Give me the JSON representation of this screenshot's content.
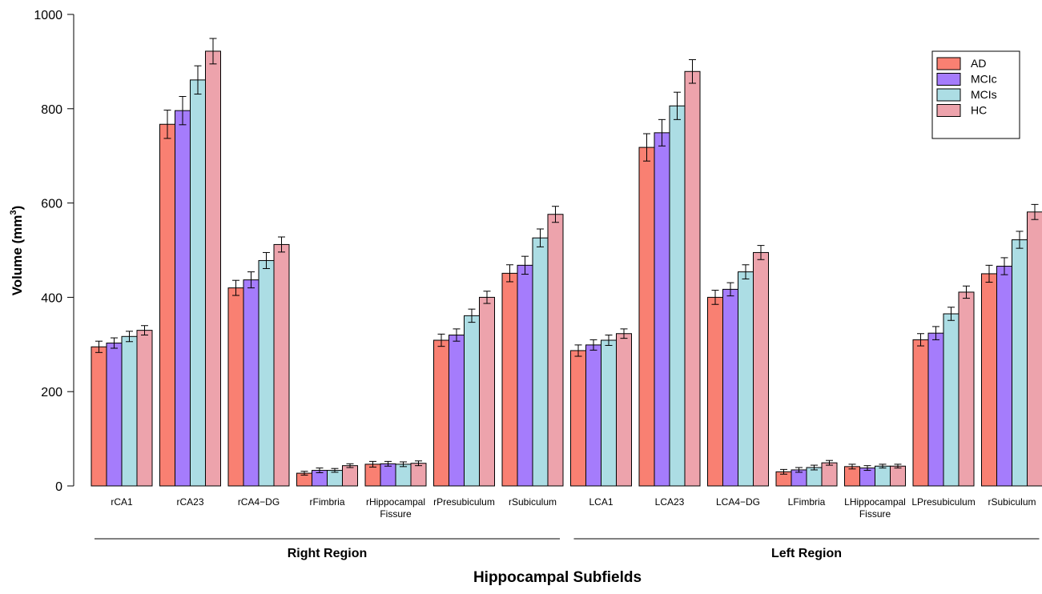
{
  "chart_data": {
    "type": "bar",
    "title": "",
    "xlabel": "Hippocampal Subfields",
    "ylabel": "Volume (mm",
    "ylabel_sup": "3",
    "ylabel_close": ")",
    "ylim": [
      0,
      1000
    ],
    "yticks": [
      "0",
      "200",
      "400",
      "600",
      "800",
      "1000"
    ],
    "ytick_values": [
      0,
      200,
      400,
      600,
      800,
      1000
    ],
    "grid": false,
    "legend_position": "top-right",
    "categories": [
      {
        "lines": [
          "rCA1"
        ]
      },
      {
        "lines": [
          "rCA23"
        ]
      },
      {
        "lines": [
          "rCA4−DG"
        ]
      },
      {
        "lines": [
          "rFimbria"
        ]
      },
      {
        "lines": [
          "rHippocampal",
          "Fissure"
        ]
      },
      {
        "lines": [
          "rPresubiculum"
        ]
      },
      {
        "lines": [
          "rSubiculum"
        ]
      },
      {
        "lines": [
          "LCA1"
        ]
      },
      {
        "lines": [
          "LCA23"
        ]
      },
      {
        "lines": [
          "LCA4−DG"
        ]
      },
      {
        "lines": [
          "LFimbria"
        ]
      },
      {
        "lines": [
          "LHippocampal",
          "Fissure"
        ]
      },
      {
        "lines": [
          "LPresubiculum"
        ]
      },
      {
        "lines": [
          "rSubiculum"
        ]
      }
    ],
    "regions": [
      {
        "label": "Right Region",
        "from": 0,
        "to": 6
      },
      {
        "label": "Left Region",
        "from": 7,
        "to": 13
      }
    ],
    "series": [
      {
        "name": "AD",
        "color": "#f98072",
        "values": [
          295,
          767,
          420,
          27,
          46,
          309,
          451,
          287,
          718,
          400,
          30,
          41,
          310,
          450
        ],
        "errors": [
          12,
          30,
          16,
          4,
          6,
          13,
          18,
          12,
          29,
          15,
          5,
          5,
          13,
          18
        ]
      },
      {
        "name": "MCIc",
        "color": "#a57cfc",
        "values": [
          303,
          796,
          437,
          33,
          47,
          320,
          468,
          299,
          749,
          417,
          34,
          38,
          324,
          466
        ],
        "errors": [
          11,
          30,
          17,
          5,
          5,
          13,
          19,
          11,
          28,
          14,
          5,
          5,
          14,
          18
        ]
      },
      {
        "name": "MCIs",
        "color": "#acdde4",
        "values": [
          317,
          861,
          478,
          33,
          46,
          361,
          526,
          309,
          806,
          454,
          39,
          42,
          365,
          522
        ],
        "errors": [
          11,
          30,
          17,
          4,
          5,
          14,
          19,
          11,
          29,
          15,
          5,
          4,
          14,
          18
        ]
      },
      {
        "name": "HC",
        "color": "#eda3ac",
        "values": [
          330,
          922,
          512,
          43,
          48,
          400,
          576,
          323,
          879,
          495,
          49,
          42,
          411,
          581
        ],
        "errors": [
          10,
          27,
          16,
          4,
          5,
          13,
          17,
          10,
          25,
          15,
          5,
          4,
          13,
          16
        ]
      }
    ]
  }
}
